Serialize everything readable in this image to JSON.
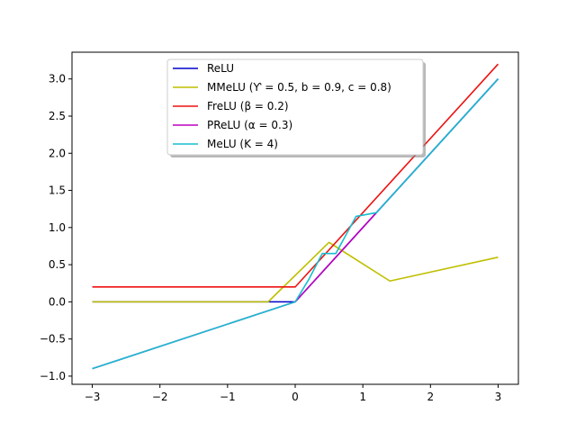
{
  "chart_data": {
    "type": "line",
    "title": "",
    "xlabel": "",
    "ylabel": "",
    "xlim": [
      -3.3,
      3.3
    ],
    "ylim": [
      -1.11,
      3.36
    ],
    "grid": false,
    "legend_position": "upper center",
    "xticks": [
      -3,
      -2,
      -1,
      0,
      1,
      2,
      3
    ],
    "xtick_labels": [
      "−3",
      "−2",
      "−1",
      "0",
      "1",
      "2",
      "3"
    ],
    "yticks": [
      -1.0,
      -0.5,
      0.0,
      0.5,
      1.0,
      1.5,
      2.0,
      2.5,
      3.0
    ],
    "ytick_labels": [
      "−1.0",
      "−0.5",
      "0.0",
      "0.5",
      "1.0",
      "1.5",
      "2.0",
      "2.5",
      "3.0"
    ],
    "series": [
      {
        "name": "ReLU",
        "color": "#0000cc",
        "x": [
          -3,
          0,
          3
        ],
        "y": [
          0,
          0,
          3
        ]
      },
      {
        "name": "MMeLU (Ƴ = 0.5, b = 0.9, c = 0.8)",
        "color": "#bfbf00",
        "x": [
          -3,
          -0.4,
          0.5,
          1.4,
          3
        ],
        "y": [
          0,
          0,
          0.8,
          0.28,
          0.6
        ]
      },
      {
        "name": "FreLU (β = 0.2)",
        "color": "#ee1111",
        "x": [
          -3,
          0,
          3
        ],
        "y": [
          0.2,
          0.2,
          3.2
        ]
      },
      {
        "name": "PReLU (α = 0.3)",
        "color": "#bf00bf",
        "x": [
          -3,
          0,
          3
        ],
        "y": [
          -0.9,
          0,
          3
        ]
      },
      {
        "name": "MeLU (K = 4)",
        "color": "#17becf",
        "x": [
          -3,
          0,
          0.2,
          0.4,
          0.6,
          0.9,
          1.2,
          3
        ],
        "y": [
          -0.9,
          0,
          0.3,
          0.65,
          0.65,
          1.15,
          1.2,
          3
        ]
      }
    ]
  }
}
